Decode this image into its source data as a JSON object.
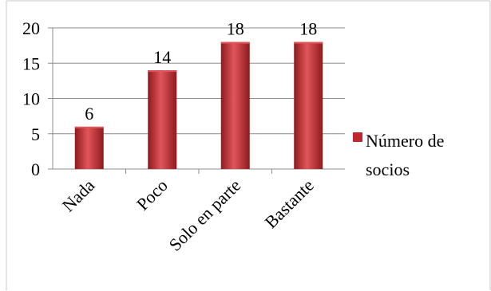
{
  "chart_data": {
    "type": "bar",
    "categories": [
      "Nada",
      "Poco",
      "Solo en parte",
      "Bastante"
    ],
    "series": [
      {
        "name": "Número de socios",
        "values": [
          6,
          14,
          18,
          18
        ]
      }
    ],
    "title": "",
    "xlabel": "",
    "ylabel": "",
    "ylim": [
      0,
      20
    ],
    "yticks": [
      0,
      5,
      10,
      15,
      20
    ],
    "grid": true,
    "data_labels": true,
    "legend_position": "right",
    "legend": {
      "line1": "Número de",
      "line2": "socios"
    },
    "colors": {
      "bar": "#c0282d",
      "bar_light": "#e0565a",
      "bar_dark": "#8e1a1e",
      "grid": "#8c8c8c",
      "frame": "#c8c8c8"
    }
  }
}
